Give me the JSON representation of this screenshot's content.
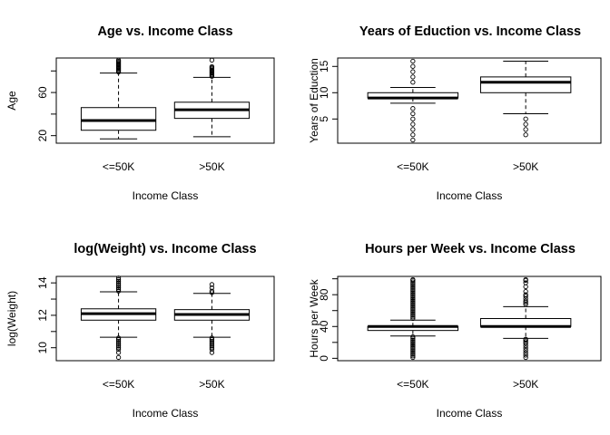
{
  "chart_data": [
    {
      "type": "boxplot",
      "title": "Age vs. Income Class",
      "xlabel": "Income Class",
      "ylabel": "Age",
      "categories": [
        "<=50K",
        ">50K"
      ],
      "ylim": [
        13,
        92
      ],
      "yticks": [
        20,
        60
      ],
      "minor_yticks": [
        40,
        80
      ],
      "boxes": [
        {
          "category": "<=50K",
          "lower_whisker": 17,
          "q1": 25,
          "median": 34,
          "q3": 46,
          "upper_whisker": 78,
          "outliers": [
            79,
            80,
            81,
            82,
            83,
            84,
            85,
            86,
            87,
            88,
            89,
            90
          ]
        },
        {
          "category": ">50K",
          "lower_whisker": 19,
          "q1": 36,
          "median": 44,
          "q3": 51,
          "upper_whisker": 74,
          "outliers": [
            75,
            76,
            77,
            78,
            79,
            80,
            81,
            82,
            83,
            84,
            90
          ]
        }
      ]
    },
    {
      "type": "boxplot",
      "title": "Years of Eduction vs. Income Class",
      "xlabel": "Income Class",
      "ylabel": "Years of Eduction",
      "categories": [
        "<=50K",
        ">50K"
      ],
      "ylim": [
        0.4,
        16.6
      ],
      "yticks": [
        5,
        10,
        15
      ],
      "boxes": [
        {
          "category": "<=50K",
          "lower_whisker": 8,
          "q1": 9,
          "median": 9,
          "q3": 10,
          "upper_whisker": 11,
          "outliers": [
            1,
            2,
            3,
            4,
            5,
            6,
            7,
            12,
            13,
            14,
            15,
            16
          ]
        },
        {
          "category": ">50K",
          "lower_whisker": 6,
          "q1": 10,
          "median": 12,
          "q3": 13,
          "upper_whisker": 16,
          "outliers": [
            2,
            3,
            4,
            5
          ]
        }
      ]
    },
    {
      "type": "boxplot",
      "title": "log(Weight) vs. Income Class",
      "xlabel": "Income Class",
      "ylabel": "log(Weight)",
      "categories": [
        "<=50K",
        ">50K"
      ],
      "ylim": [
        9.2,
        14.4
      ],
      "yticks": [
        10,
        12,
        14
      ],
      "minor_yticks": [
        11,
        13
      ],
      "boxes": [
        {
          "category": "<=50K",
          "lower_whisker": 10.65,
          "q1": 11.7,
          "median": 12.1,
          "q3": 12.4,
          "upper_whisker": 13.45,
          "outliers": [
            9.4,
            9.7,
            9.9,
            10.0,
            10.1,
            10.2,
            10.3,
            10.4,
            10.5,
            10.6,
            13.5,
            13.6,
            13.7,
            13.8,
            13.9,
            14.0,
            14.1,
            14.2,
            14.3
          ]
        },
        {
          "category": ">50K",
          "lower_whisker": 10.65,
          "q1": 11.7,
          "median": 12.05,
          "q3": 12.35,
          "upper_whisker": 13.35,
          "outliers": [
            9.7,
            9.9,
            10.0,
            10.1,
            10.2,
            10.3,
            10.4,
            10.5,
            10.6,
            13.4,
            13.5,
            13.7,
            13.9
          ]
        }
      ]
    },
    {
      "type": "boxplot",
      "title": "Hours per Week vs. Income Class",
      "xlabel": "Income Class",
      "ylabel": "Hours per Week",
      "categories": [
        "<=50K",
        ">50K"
      ],
      "ylim": [
        -3,
        103
      ],
      "yticks": [
        0,
        40,
        80
      ],
      "minor_yticks": [
        20,
        60,
        100
      ],
      "boxes": [
        {
          "category": "<=50K",
          "lower_whisker": 28,
          "q1": 35,
          "median": 40,
          "q3": 40,
          "upper_whisker": 48,
          "outliers": [
            1,
            3,
            5,
            7,
            9,
            11,
            13,
            15,
            17,
            19,
            21,
            23,
            25,
            27,
            50,
            52,
            54,
            56,
            58,
            60,
            62,
            64,
            66,
            68,
            70,
            72,
            74,
            76,
            78,
            80,
            82,
            84,
            86,
            88,
            90,
            92,
            94,
            96,
            98,
            99
          ]
        },
        {
          "category": ">50K",
          "lower_whisker": 25,
          "q1": 40,
          "median": 40,
          "q3": 50,
          "upper_whisker": 65,
          "outliers": [
            1,
            4,
            7,
            10,
            13,
            16,
            19,
            21,
            23,
            24,
            68,
            70,
            72,
            75,
            78,
            80,
            84,
            90,
            95,
            98,
            99
          ]
        }
      ]
    }
  ]
}
